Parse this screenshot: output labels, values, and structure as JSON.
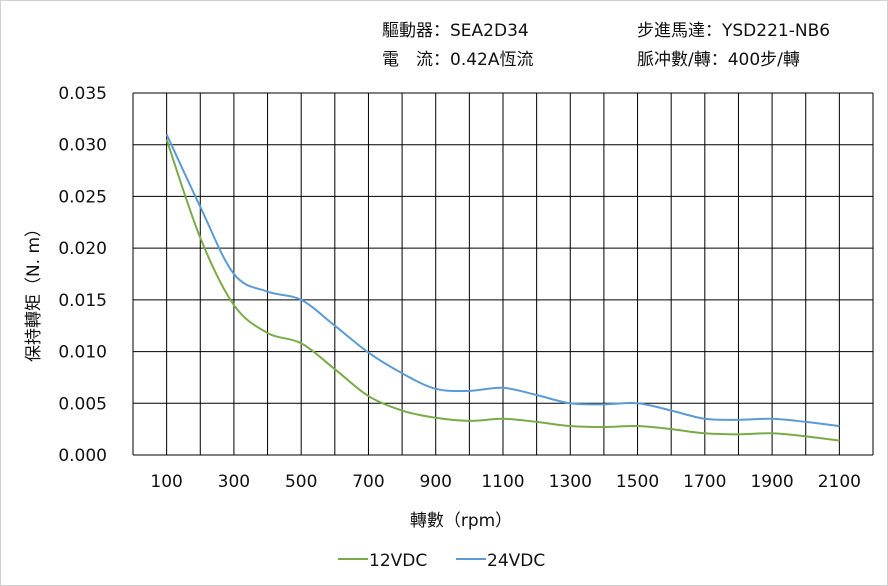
{
  "header": {
    "driver": "驅動器：SEA2D34",
    "motor": "步進馬達：YSD221-NB6",
    "current": "電　流：0.42A恆流",
    "pulses": "脈冲數/轉：400步/轉"
  },
  "chart_data": {
    "type": "line",
    "xlabel": "轉數（rpm）",
    "ylabel": "保持轉矩（N. m）",
    "xlim": [
      0,
      2200
    ],
    "ylim": [
      0,
      0.035
    ],
    "grid": true,
    "legend": "bottom",
    "x_ticks": [
      "100",
      "300",
      "500",
      "700",
      "900",
      "1100",
      "1300",
      "1500",
      "1700",
      "1900",
      "2100"
    ],
    "y_ticks": [
      "0.000",
      "0.005",
      "0.010",
      "0.015",
      "0.020",
      "0.025",
      "0.030",
      "0.035"
    ],
    "x": [
      100,
      200,
      300,
      400,
      500,
      600,
      700,
      800,
      900,
      1000,
      1100,
      1200,
      1300,
      1400,
      1500,
      1600,
      1700,
      1800,
      1900,
      2000,
      2100
    ],
    "series": [
      {
        "name": "12VDC",
        "color": "#7aab48",
        "values": [
          0.0305,
          0.021,
          0.0145,
          0.0118,
          0.0108,
          0.0083,
          0.0057,
          0.0043,
          0.0036,
          0.0033,
          0.0035,
          0.0032,
          0.0028,
          0.0027,
          0.0028,
          0.0025,
          0.0021,
          0.002,
          0.0021,
          0.0018,
          0.0014
        ]
      },
      {
        "name": "24VDC",
        "color": "#5b9bd5",
        "values": [
          0.031,
          0.024,
          0.0175,
          0.0158,
          0.015,
          0.0125,
          0.0099,
          0.0079,
          0.0064,
          0.0062,
          0.0065,
          0.0058,
          0.005,
          0.0049,
          0.005,
          0.0043,
          0.0035,
          0.0034,
          0.0035,
          0.0032,
          0.0028
        ]
      }
    ]
  }
}
